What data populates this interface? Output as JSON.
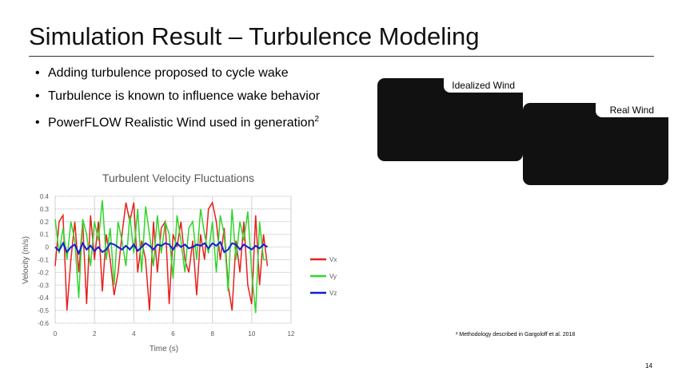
{
  "slide": {
    "title": "Simulation Result – Turbulence Modeling",
    "bullets": [
      "Adding turbulence proposed to cycle wake",
      "Turbulence is known to influence wake behavior",
      "PowerFLOW Realistic Wind used in generation"
    ],
    "bullet3_sup": "2",
    "images": [
      {
        "label": "Idealized Wind"
      },
      {
        "label": "Real Wind"
      }
    ],
    "footnote": "² Methodology described in Gargoloff et al. 2018",
    "page_number": "14"
  },
  "chart_data": {
    "type": "line",
    "title": "Turbulent Velocity Fluctuations",
    "xlabel": "Time (s)",
    "ylabel": "Velocity (m/s)",
    "xlim": [
      0,
      12
    ],
    "ylim": [
      -0.6,
      0.4
    ],
    "xticks": [
      0,
      2,
      4,
      6,
      8,
      10,
      12
    ],
    "yticks": [
      0.4,
      0.3,
      0.2,
      0.1,
      0,
      -0.1,
      -0.2,
      -0.3,
      -0.4,
      -0.5,
      -0.6
    ],
    "ytick_labels": [
      "0.4",
      "0.3",
      "0.2",
      "0.1",
      "0",
      "-0.1",
      "-0.2",
      "-0.3",
      "-0.4",
      "-0.5",
      "-0.6"
    ],
    "legend_position": "right",
    "x": [
      0,
      0.2,
      0.4,
      0.6,
      0.8,
      1.0,
      1.2,
      1.4,
      1.6,
      1.8,
      2.0,
      2.2,
      2.4,
      2.6,
      2.8,
      3.0,
      3.2,
      3.4,
      3.6,
      3.8,
      4.0,
      4.2,
      4.4,
      4.6,
      4.8,
      5.0,
      5.2,
      5.4,
      5.6,
      5.8,
      6.0,
      6.2,
      6.4,
      6.6,
      6.8,
      7.0,
      7.2,
      7.4,
      7.6,
      7.8,
      8.0,
      8.2,
      8.4,
      8.6,
      8.8,
      9.0,
      9.2,
      9.4,
      9.6,
      9.8,
      10.0,
      10.2,
      10.4,
      10.6,
      10.8
    ],
    "series": [
      {
        "name": "Vx",
        "color": "#e8201c",
        "values": [
          -0.15,
          0.2,
          0.25,
          -0.5,
          -0.1,
          0.2,
          -0.2,
          0.2,
          -0.45,
          0.25,
          -0.1,
          0.2,
          -0.35,
          0.1,
          -0.1,
          -0.38,
          -0.2,
          0.1,
          0.35,
          0.2,
          0.35,
          -0.2,
          0.05,
          -0.1,
          -0.5,
          0.2,
          -0.2,
          0.15,
          0.2,
          -0.45,
          0.1,
          0.0,
          0.2,
          -0.1,
          -0.2,
          0.05,
          -0.38,
          0.1,
          -0.1,
          0.3,
          0.35,
          0.2,
          -0.1,
          0.15,
          -0.3,
          -0.5,
          0.05,
          -0.2,
          0.2,
          -0.3,
          -0.45,
          0.25,
          -0.3,
          0.1,
          -0.15
        ]
      },
      {
        "name": "Vy",
        "color": "#2fd62a",
        "values": [
          0.22,
          -0.05,
          0.15,
          -0.1,
          0.2,
          0.05,
          -0.4,
          0.22,
          0.1,
          -0.15,
          0.2,
          0.05,
          0.37,
          -0.1,
          0.15,
          -0.3,
          0.2,
          0.05,
          -0.15,
          0.25,
          -0.05,
          0.3,
          -0.2,
          0.32,
          0.1,
          -0.15,
          0.25,
          -0.05,
          0.2,
          0.1,
          -0.25,
          0.25,
          0.05,
          -0.2,
          0.15,
          0.2,
          -0.1,
          0.3,
          0.1,
          -0.05,
          0.2,
          -0.2,
          0.25,
          0.1,
          -0.35,
          0.3,
          -0.1,
          0.2,
          0.05,
          0.28,
          -0.2,
          -0.52,
          0.2,
          -0.1,
          -0.1
        ]
      },
      {
        "name": "Vz",
        "color": "#1020d0",
        "values": [
          0.0,
          -0.03,
          0.03,
          -0.04,
          0.0,
          0.02,
          -0.05,
          0.03,
          -0.02,
          0.01,
          -0.03,
          0.0,
          -0.04,
          -0.02,
          0.03,
          0.02,
          0.0,
          -0.02,
          0.01,
          -0.02,
          0.02,
          -0.03,
          0.0,
          0.03,
          0.01,
          -0.02,
          0.02,
          0.01,
          0.03,
          0.02,
          -0.02,
          0.03,
          0.0,
          0.02,
          -0.01,
          0.0,
          0.02,
          0.01,
          0.03,
          -0.01,
          0.03,
          0.01,
          0.04,
          -0.04,
          -0.02,
          0.03,
          0.02,
          -0.02,
          0.02,
          0.0,
          -0.02,
          0.01,
          -0.01,
          0.02,
          0.0
        ]
      }
    ]
  }
}
